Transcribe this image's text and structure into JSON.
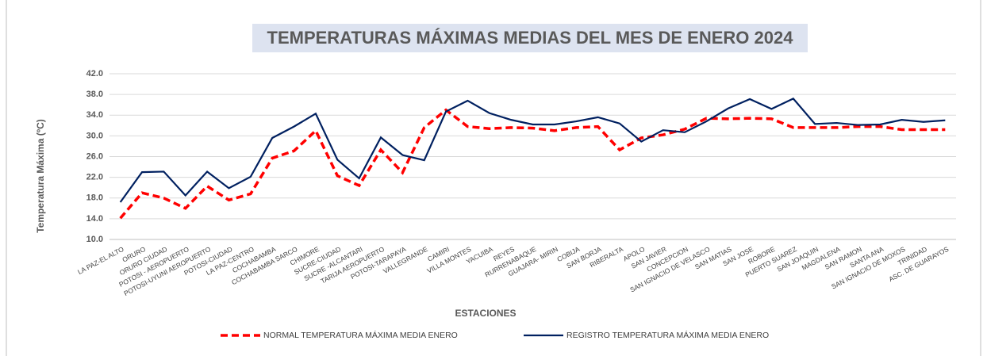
{
  "chart_data": {
    "type": "line",
    "title": "TEMPERATURAS MÁXIMAS MEDIAS DEL MES DE ENERO 2024",
    "x_label": "ESTACIONES",
    "y_label": "Temperatura Máxima (ºC)",
    "categories": [
      "LA PAZ-EL ALTO",
      "ORURO",
      "ORURO  CIUDAD",
      "POTOSI - AEROPUERTO",
      "POTOSI-UYUNI AEROPUERTO",
      "POTOSI-CIUDAD",
      "LA PAZ-CENTRO",
      "COCHABAMBA",
      "COCHABAMBA SARCO",
      "CHIMORE",
      "SUCRE-CIUDAD",
      "SUCRE -ALCANTARI",
      "TARIJA AEROPUERTO",
      "POTOSI-TARAPAYA",
      "VALLEGRANDE",
      "CAMIRI",
      "VILLA MONTES",
      "YACUIBA",
      "REYES",
      "RURRENABAQUE",
      "GUAJARA- MIRIN",
      "COBIJA",
      "SAN BORJA",
      "RIBERALTA",
      "APOLO",
      "SAN JAVIER",
      "CONCEPCION",
      "SAN IGNACIO DE VELASCO",
      "SAN MATIAS",
      "SAN JOSE",
      "ROBORE",
      "PUERTO SUAREZ",
      "SAN JOAQUIN",
      "MAGDALENA",
      "SAN RAMON",
      "SANTA ANA",
      "SAN IGNACIO DE MOXOS",
      "TRINIDAD",
      "ASC. DE GUARAYOS"
    ],
    "series": [
      {
        "name": "NORMAL TEMPERATURA MÁXIMA MEDIA ENERO",
        "color": "#ff0000",
        "dashed": true,
        "values": [
          14.1,
          19.0,
          18.0,
          16.0,
          20.3,
          17.6,
          18.8,
          25.7,
          27.1,
          31.0,
          22.3,
          20.4,
          27.3,
          22.9,
          31.6,
          35.0,
          31.8,
          31.4,
          31.6,
          31.5,
          31.0,
          31.6,
          31.8,
          27.3,
          29.6,
          30.2,
          31.3,
          33.4,
          33.3,
          33.4,
          33.3,
          31.6,
          31.6,
          31.6,
          31.8,
          31.8,
          31.2,
          31.2,
          31.2
        ]
      },
      {
        "name": "REGISTRO TEMPERATURA MÁXIMA MEDIA ENERO",
        "color": "#002060",
        "dashed": false,
        "values": [
          17.2,
          23.0,
          23.1,
          18.5,
          23.1,
          19.9,
          22.1,
          29.6,
          31.8,
          34.3,
          25.4,
          21.8,
          29.7,
          26.3,
          25.3,
          34.7,
          36.8,
          34.4,
          33.1,
          32.2,
          32.2,
          32.8,
          33.6,
          32.4,
          28.9,
          31.1,
          30.7,
          32.8,
          35.3,
          37.1,
          35.2,
          37.2,
          32.3,
          32.5,
          32.1,
          32.2,
          33.1,
          32.7,
          33.0
        ]
      }
    ],
    "ylim": [
      10,
      42
    ],
    "yticks": [
      {
        "value": 10,
        "label": "10.0"
      },
      {
        "value": 14,
        "label": "14.0"
      },
      {
        "value": 18,
        "label": "18.0"
      },
      {
        "value": 22,
        "label": "22.0"
      },
      {
        "value": 26,
        "label": "26.0"
      },
      {
        "value": 30,
        "label": "30.0"
      },
      {
        "value": 34,
        "label": "34.0"
      },
      {
        "value": 38,
        "label": "38.0"
      },
      {
        "value": 42,
        "label": "42.0"
      }
    ],
    "grid": true,
    "legend": "bottom"
  }
}
